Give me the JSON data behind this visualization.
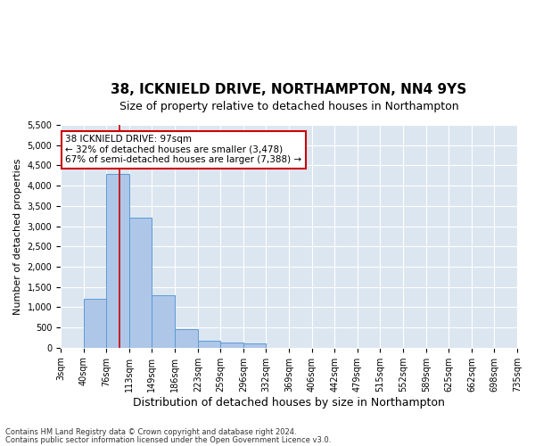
{
  "title": "38, ICKNIELD DRIVE, NORTHAMPTON, NN4 9YS",
  "subtitle": "Size of property relative to detached houses in Northampton",
  "xlabel": "Distribution of detached houses by size in Northampton",
  "ylabel": "Number of detached properties",
  "footnote1": "Contains HM Land Registry data © Crown copyright and database right 2024.",
  "footnote2": "Contains public sector information licensed under the Open Government Licence v3.0.",
  "annotation_title": "38 ICKNIELD DRIVE: 97sqm",
  "annotation_line1": "← 32% of detached houses are smaller (3,478)",
  "annotation_line2": "67% of semi-detached houses are larger (7,388) →",
  "property_size": 97,
  "bar_edges": [
    3,
    40,
    76,
    113,
    149,
    186,
    223,
    259,
    296,
    332,
    369,
    406,
    442,
    479,
    515,
    552,
    589,
    625,
    662,
    698,
    735
  ],
  "bar_heights": [
    0,
    1200,
    4300,
    3200,
    1300,
    450,
    180,
    120,
    100,
    0,
    0,
    0,
    0,
    0,
    0,
    0,
    0,
    0,
    0,
    0
  ],
  "bar_color": "#aec6e8",
  "bar_edge_color": "#5b9bd5",
  "vline_color": "#cc0000",
  "vline_x": 97,
  "ylim": [
    0,
    5500
  ],
  "yticks": [
    0,
    500,
    1000,
    1500,
    2000,
    2500,
    3000,
    3500,
    4000,
    4500,
    5000,
    5500
  ],
  "plot_bg_color": "#dce6f1",
  "annotation_box_color": "white",
  "annotation_box_edge": "#cc0000",
  "title_fontsize": 11,
  "subtitle_fontsize": 9,
  "xlabel_fontsize": 9,
  "ylabel_fontsize": 8,
  "tick_fontsize": 7,
  "footnote_fontsize": 6
}
